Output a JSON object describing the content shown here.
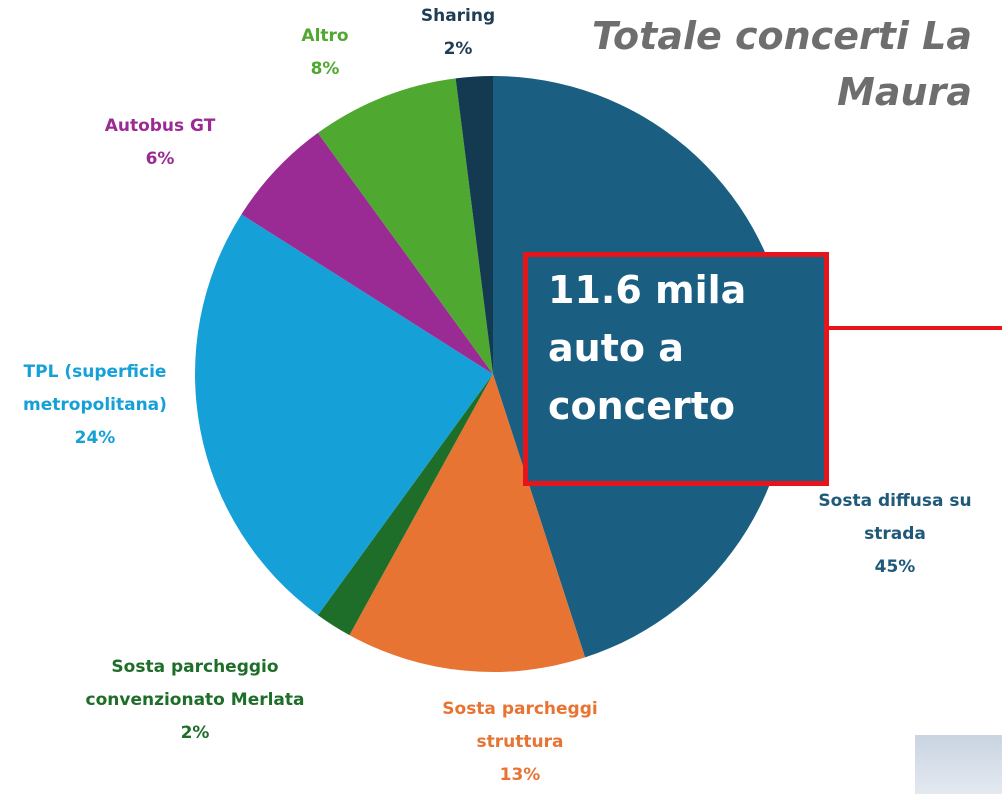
{
  "chart_data": {
    "type": "pie",
    "title": "Totale concerti La Maura",
    "categories": [
      "Sosta diffusa su strada",
      "Sosta parcheggi struttura",
      "Sosta parcheggio convenzionato Merlata",
      "TPL (superficie metropolitana)",
      "Autobus GT",
      "Altro",
      "Sharing"
    ],
    "values": [
      45,
      13,
      2,
      24,
      6,
      8,
      2
    ],
    "value_labels": [
      "45%",
      "13%",
      "2%",
      "24%",
      "6%",
      "8%",
      "2%"
    ],
    "colors": [
      "#1a5e82",
      "#e87433",
      "#1e6e2a",
      "#16a0d8",
      "#9b2b94",
      "#4fa830",
      "#133a50"
    ],
    "label_colors": [
      "#1f5a7a",
      "#e87433",
      "#1e6e2a",
      "#16a0d8",
      "#9b2b94",
      "#4fa830",
      "#1f3e55"
    ],
    "annotation": "11.6 mila auto a concerto"
  }
}
